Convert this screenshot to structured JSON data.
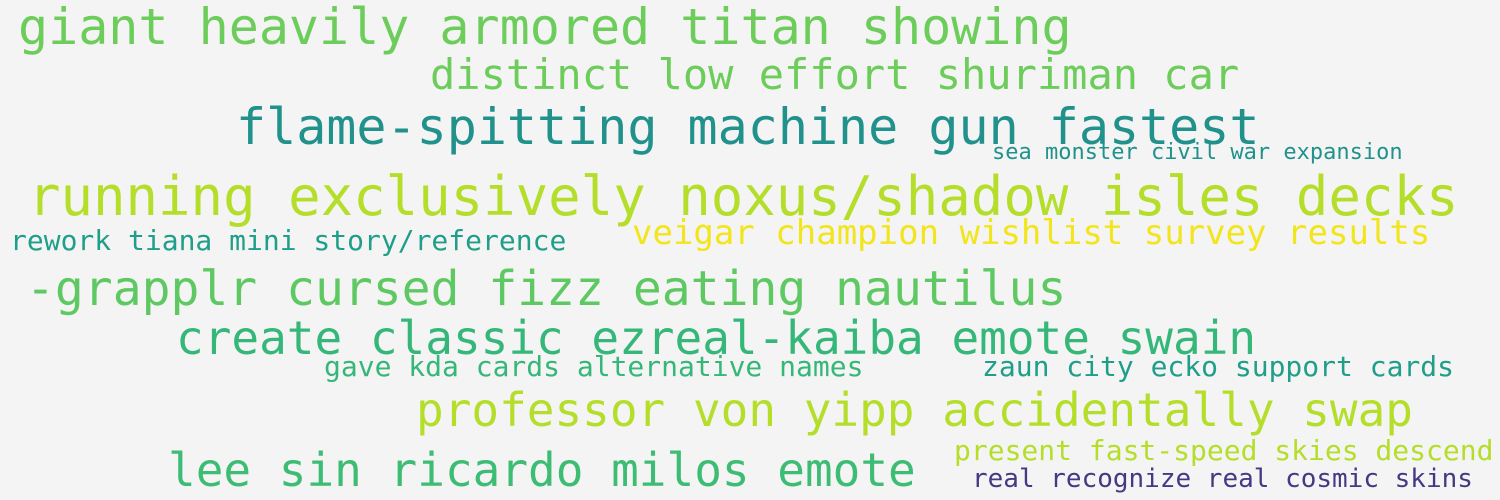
{
  "word_cloud": {
    "background_color": "#f4f4f4",
    "phrases": [
      {
        "text": "giant heavily armored titan showing",
        "color": "#6ccd5a"
      },
      {
        "text": "distinct low effort shuriman car",
        "color": "#6ccd5a"
      },
      {
        "text": "flame-spitting machine gun fastest",
        "color": "#21918c"
      },
      {
        "text": "sea monster civil war expansion",
        "color": "#21918c"
      },
      {
        "text": "running exclusively noxus/shadow isles decks",
        "color": "#b5de2b"
      },
      {
        "text": "rework tiana mini story/reference",
        "color": "#1f9e89"
      },
      {
        "text": "veigar champion wishlist survey results",
        "color": "#f2e51d"
      },
      {
        "text": "-grapplr cursed fizz eating nautilus",
        "color": "#5ec962"
      },
      {
        "text": "create classic ezreal-kaiba emote swain",
        "color": "#35b779"
      },
      {
        "text": "gave kda cards alternative names",
        "color": "#35b779"
      },
      {
        "text": "zaun city ecko support cards",
        "color": "#1f9e89"
      },
      {
        "text": "professor von yipp accidentally swap",
        "color": "#b5de2b"
      },
      {
        "text": "present fast-speed skies descend",
        "color": "#b5de2b"
      },
      {
        "text": "lee sin ricardo milos emote",
        "color": "#3dbc74"
      },
      {
        "text": "real recognize real cosmic skins",
        "color": "#443a83"
      }
    ]
  }
}
